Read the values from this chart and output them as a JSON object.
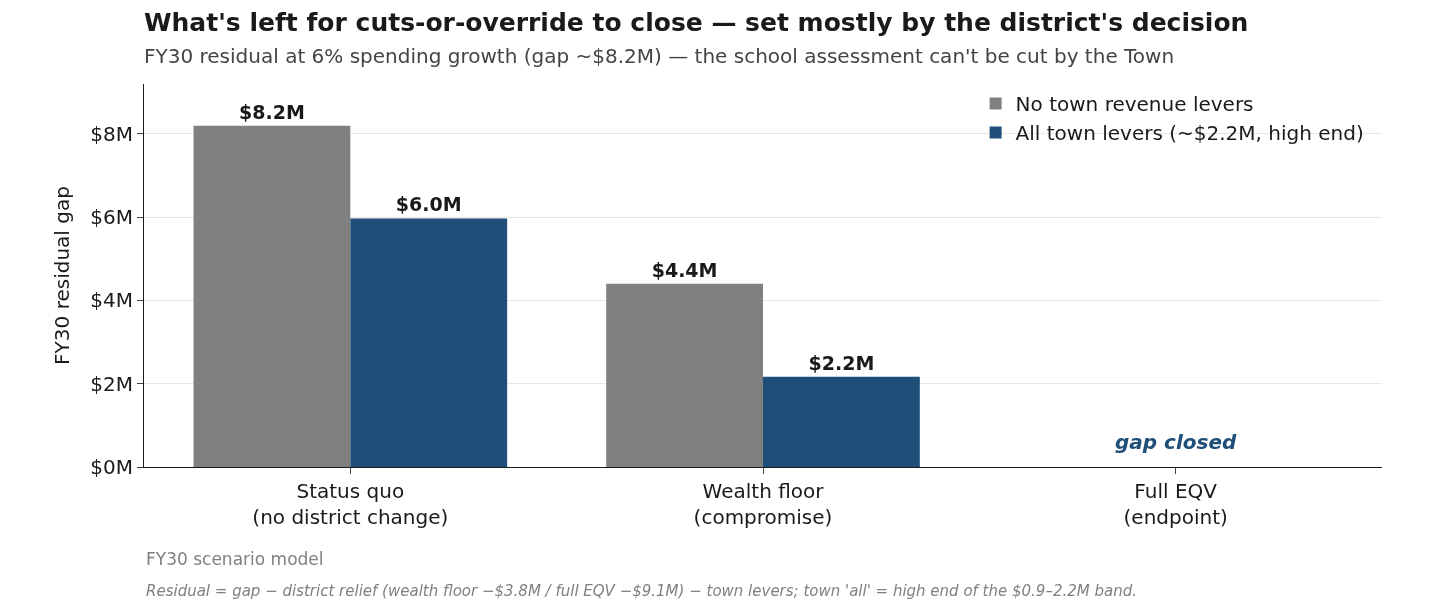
{
  "chart_data": {
    "type": "bar",
    "title": "What's left for cuts-or-override to close — set mostly by the district's decision",
    "subtitle": "FY30 residual at 6% spending growth (gap ~$8.2M) — the school assessment can't be cut by the Town",
    "ylabel": "FY30 residual gap",
    "categories": [
      "Status quo\n(no district change)",
      "Wealth floor\n(compromise)",
      "Full EQV\n(endpoint)"
    ],
    "series": [
      {
        "name": "No town revenue levers",
        "color": "#808080",
        "values": [
          8.2,
          4.4,
          0
        ],
        "value_labels": [
          "$8.2M",
          "$4.4M",
          null
        ]
      },
      {
        "name": "All town levers (~$2.2M, high end)",
        "color": "#1f4e79",
        "values": [
          5.97,
          2.17,
          0
        ],
        "value_labels": [
          "$6.0M",
          "$2.2M",
          null
        ]
      }
    ],
    "ylim": [
      0,
      9.2
    ],
    "yticks": [
      {
        "value": 0,
        "label": "$0M"
      },
      {
        "value": 2,
        "label": "$2M"
      },
      {
        "value": 4,
        "label": "$4M"
      },
      {
        "value": 6,
        "label": "$6M"
      },
      {
        "value": 8,
        "label": "$8M"
      }
    ],
    "grid": "y",
    "legend": "top right",
    "annotations": [
      "gap closed",
      "FY30 scenario model",
      "Residual = gap − district relief (wealth floor −$3.8M / full EQV −$9.1M) − town levers; town 'all' = high end of the $0.9–2.2M band."
    ]
  }
}
